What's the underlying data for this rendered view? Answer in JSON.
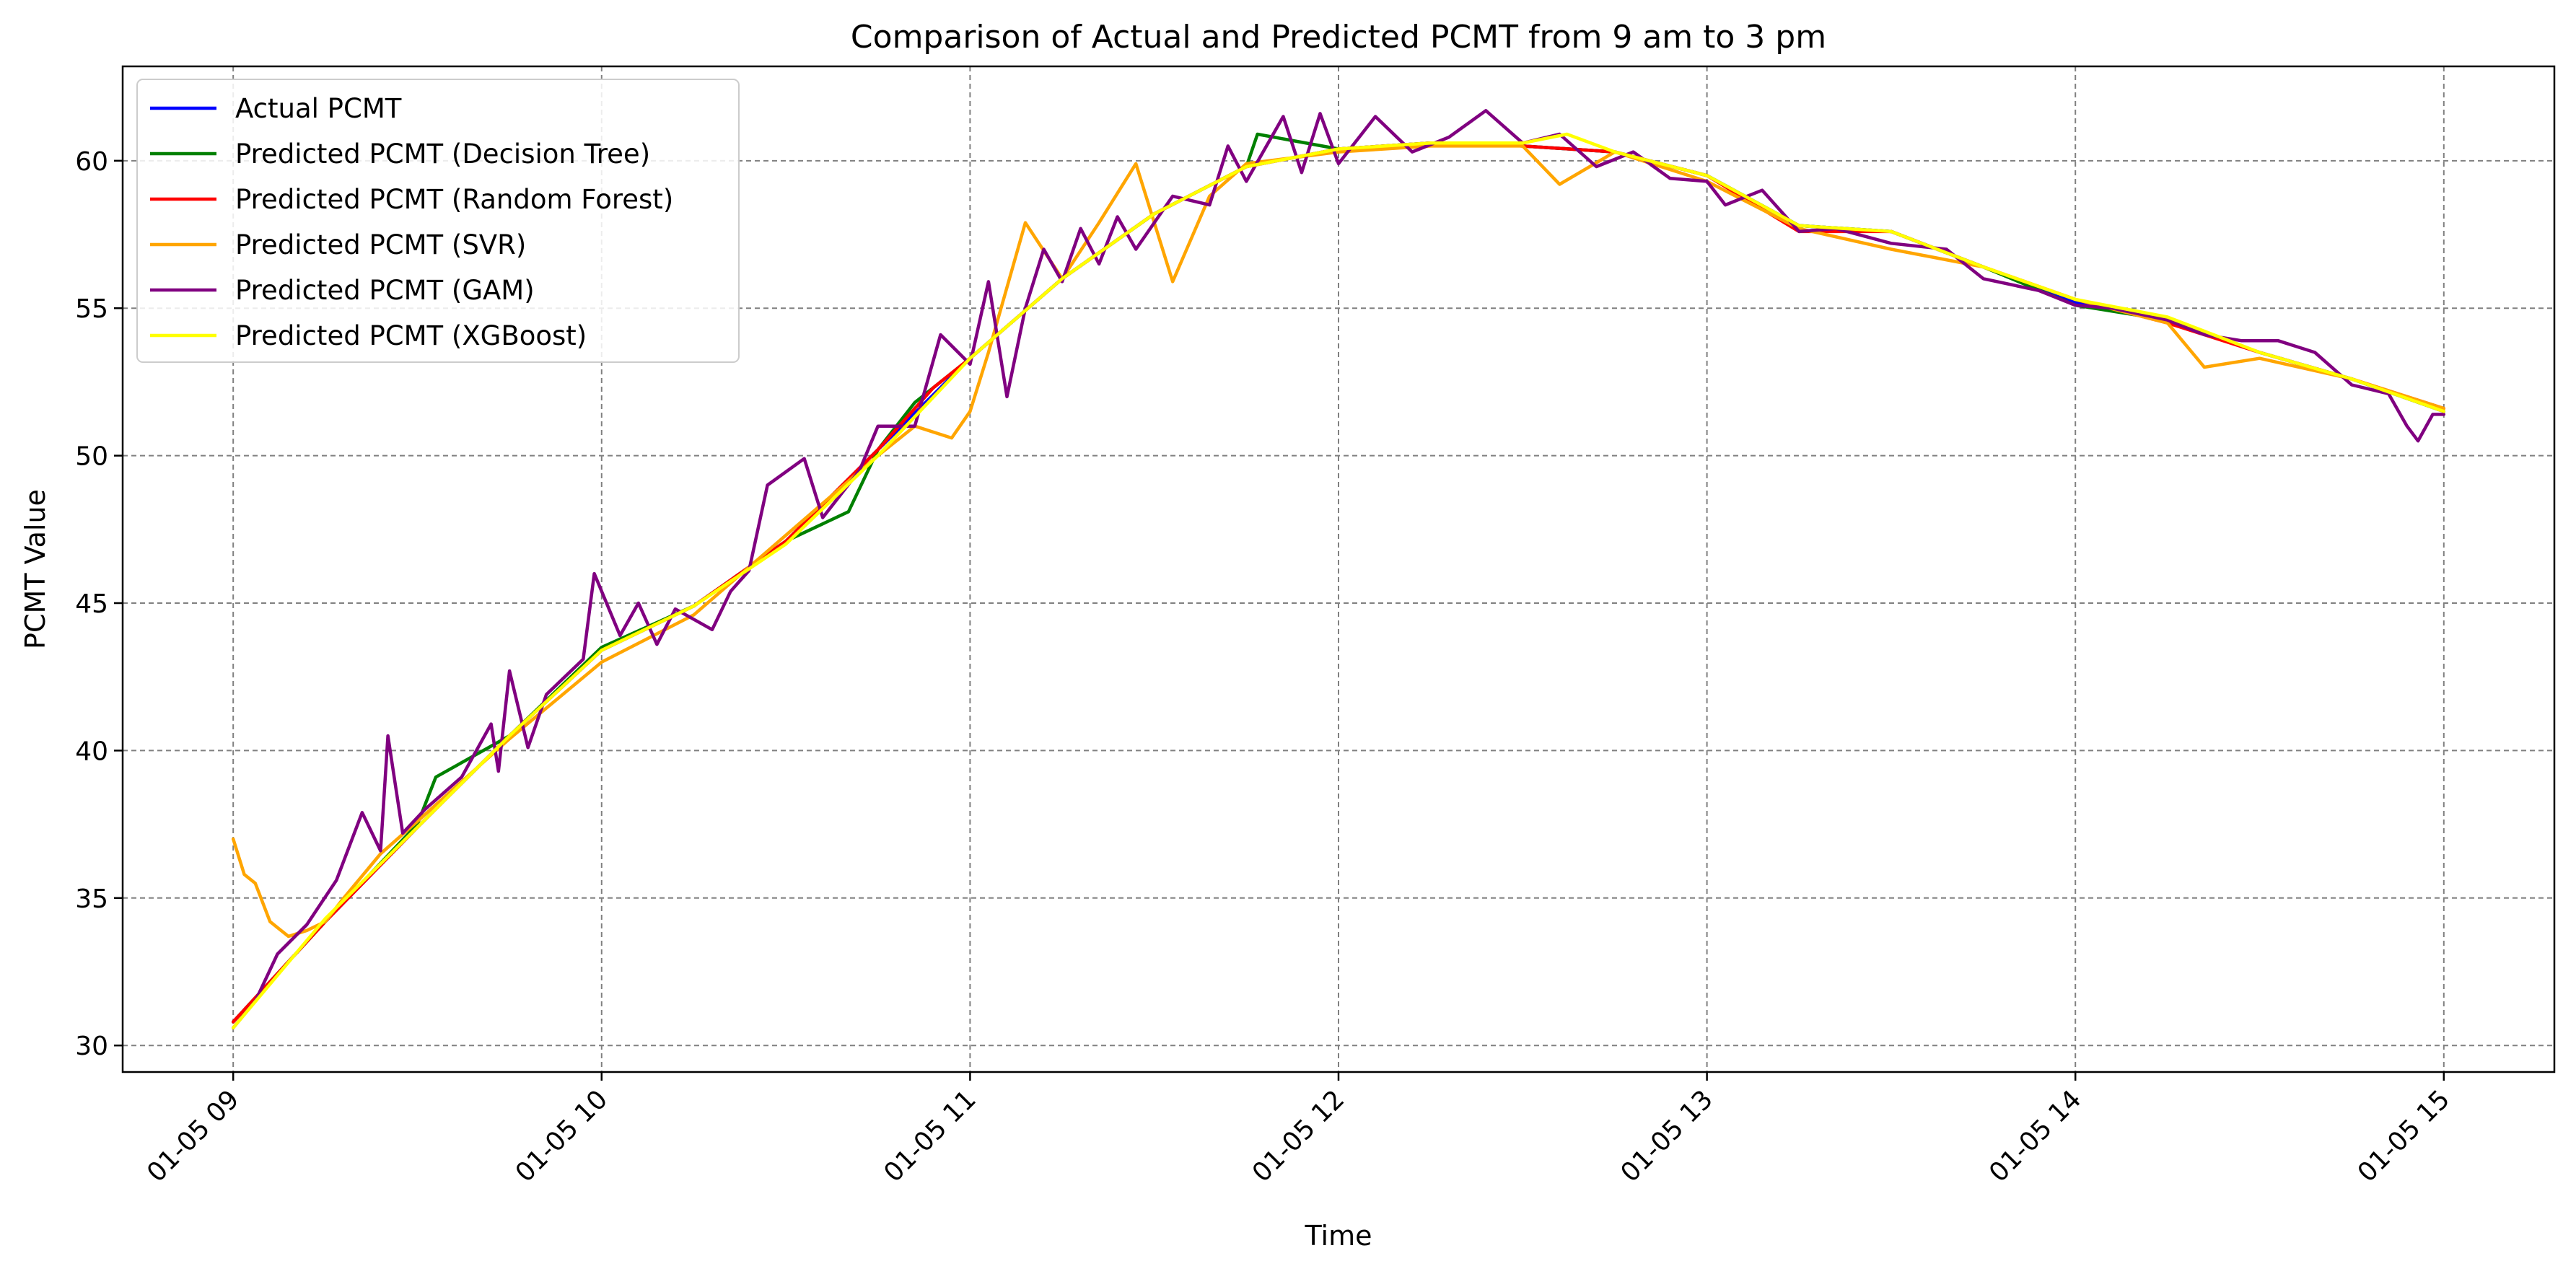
{
  "chart_data": {
    "type": "line",
    "title": "Comparison of Actual and Predicted PCMT from 9 am to 3 pm",
    "xlabel": "Time",
    "ylabel": "PCMT Value",
    "x_tick_labels": [
      "01-05 09",
      "01-05 10",
      "01-05 11",
      "01-05 12",
      "01-05 13",
      "01-05 14",
      "01-05 15"
    ],
    "x_ticks_hours": [
      9,
      10,
      11,
      12,
      13,
      14,
      15
    ],
    "xlim_hours": [
      8.7,
      15.3
    ],
    "ylim": [
      29.1,
      63.2
    ],
    "y_ticks": [
      30,
      35,
      40,
      45,
      50,
      55,
      60
    ],
    "grid": true,
    "legend_position": "top-left",
    "series": [
      {
        "name": "Actual PCMT",
        "color": "#0000ff",
        "points": [
          [
            9.0,
            30.8
          ],
          [
            9.25,
            34.2
          ],
          [
            9.5,
            37.4
          ],
          [
            9.75,
            40.5
          ],
          [
            10.0,
            43.4
          ],
          [
            10.25,
            44.9
          ],
          [
            10.5,
            47.1
          ],
          [
            10.75,
            50.2
          ],
          [
            11.0,
            53.3
          ],
          [
            11.25,
            56.0
          ],
          [
            11.5,
            58.2
          ],
          [
            11.75,
            59.8
          ],
          [
            12.0,
            60.4
          ],
          [
            12.25,
            60.6
          ],
          [
            12.5,
            60.5
          ],
          [
            12.75,
            60.3
          ],
          [
            13.0,
            59.5
          ],
          [
            13.25,
            57.8
          ],
          [
            13.5,
            57.6
          ],
          [
            13.75,
            56.4
          ],
          [
            14.0,
            55.2
          ],
          [
            14.25,
            54.6
          ],
          [
            14.5,
            53.5
          ],
          [
            14.75,
            52.6
          ],
          [
            15.0,
            51.5
          ]
        ]
      },
      {
        "name": "Predicted PCMT (Decision Tree)",
        "color": "#008000",
        "points": [
          [
            9.0,
            30.8
          ],
          [
            9.25,
            34.2
          ],
          [
            9.5,
            37.5
          ],
          [
            9.55,
            39.1
          ],
          [
            9.75,
            40.5
          ],
          [
            10.0,
            43.5
          ],
          [
            10.25,
            44.9
          ],
          [
            10.5,
            47.1
          ],
          [
            10.67,
            48.1
          ],
          [
            10.75,
            50.2
          ],
          [
            10.85,
            51.8
          ],
          [
            11.0,
            53.3
          ],
          [
            11.25,
            56.0
          ],
          [
            11.5,
            58.2
          ],
          [
            11.75,
            59.8
          ],
          [
            11.78,
            60.9
          ],
          [
            12.0,
            60.4
          ],
          [
            12.25,
            60.6
          ],
          [
            12.5,
            60.5
          ],
          [
            12.75,
            60.3
          ],
          [
            13.0,
            59.5
          ],
          [
            13.25,
            57.8
          ],
          [
            13.5,
            57.6
          ],
          [
            13.75,
            56.4
          ],
          [
            14.0,
            55.1
          ],
          [
            14.25,
            54.6
          ],
          [
            14.5,
            53.5
          ],
          [
            14.75,
            52.6
          ],
          [
            15.0,
            51.5
          ]
        ]
      },
      {
        "name": "Predicted PCMT (Random Forest)",
        "color": "#ff0000",
        "points": [
          [
            9.0,
            30.8
          ],
          [
            9.25,
            34.2
          ],
          [
            9.5,
            37.4
          ],
          [
            9.75,
            40.5
          ],
          [
            10.0,
            43.4
          ],
          [
            10.25,
            44.9
          ],
          [
            10.5,
            47.1
          ],
          [
            10.75,
            50.2
          ],
          [
            10.9,
            52.3
          ],
          [
            11.0,
            53.3
          ],
          [
            11.25,
            56.0
          ],
          [
            11.5,
            58.2
          ],
          [
            11.75,
            59.8
          ],
          [
            12.0,
            60.4
          ],
          [
            12.25,
            60.6
          ],
          [
            12.5,
            60.5
          ],
          [
            12.75,
            60.3
          ],
          [
            13.0,
            59.5
          ],
          [
            13.25,
            57.6
          ],
          [
            13.5,
            57.6
          ],
          [
            13.75,
            56.4
          ],
          [
            14.0,
            55.3
          ],
          [
            14.25,
            54.5
          ],
          [
            14.5,
            53.5
          ],
          [
            14.75,
            52.6
          ],
          [
            15.0,
            51.6
          ]
        ]
      },
      {
        "name": "Predicted PCMT (SVR)",
        "color": "#ffa500",
        "points": [
          [
            9.0,
            37.0
          ],
          [
            9.03,
            35.8
          ],
          [
            9.06,
            35.5
          ],
          [
            9.1,
            34.2
          ],
          [
            9.15,
            33.7
          ],
          [
            9.2,
            33.9
          ],
          [
            9.25,
            34.2
          ],
          [
            9.3,
            35.0
          ],
          [
            9.4,
            36.5
          ],
          [
            9.5,
            37.6
          ],
          [
            9.75,
            40.4
          ],
          [
            10.0,
            43.0
          ],
          [
            10.25,
            44.6
          ],
          [
            10.5,
            47.3
          ],
          [
            10.75,
            50.0
          ],
          [
            10.85,
            51.0
          ],
          [
            10.95,
            50.6
          ],
          [
            11.0,
            51.5
          ],
          [
            11.05,
            53.5
          ],
          [
            11.15,
            57.9
          ],
          [
            11.25,
            56.0
          ],
          [
            11.35,
            57.9
          ],
          [
            11.45,
            59.9
          ],
          [
            11.55,
            55.9
          ],
          [
            11.65,
            58.8
          ],
          [
            11.75,
            59.9
          ],
          [
            12.0,
            60.3
          ],
          [
            12.25,
            60.5
          ],
          [
            12.5,
            60.5
          ],
          [
            12.6,
            59.2
          ],
          [
            12.75,
            60.3
          ],
          [
            13.0,
            59.3
          ],
          [
            13.25,
            57.7
          ],
          [
            13.5,
            57.0
          ],
          [
            13.75,
            56.4
          ],
          [
            14.0,
            55.3
          ],
          [
            14.25,
            54.5
          ],
          [
            14.35,
            53.0
          ],
          [
            14.5,
            53.3
          ],
          [
            14.75,
            52.6
          ],
          [
            15.0,
            51.6
          ]
        ]
      },
      {
        "name": "Predicted PCMT (GAM)",
        "color": "#800080",
        "points": [
          [
            9.0,
            30.6
          ],
          [
            9.06,
            31.5
          ],
          [
            9.12,
            33.1
          ],
          [
            9.2,
            34.1
          ],
          [
            9.28,
            35.6
          ],
          [
            9.35,
            37.9
          ],
          [
            9.4,
            36.6
          ],
          [
            9.42,
            40.5
          ],
          [
            9.46,
            37.2
          ],
          [
            9.52,
            38.0
          ],
          [
            9.62,
            39.1
          ],
          [
            9.7,
            40.9
          ],
          [
            9.72,
            39.3
          ],
          [
            9.75,
            42.7
          ],
          [
            9.8,
            40.1
          ],
          [
            9.85,
            41.9
          ],
          [
            9.9,
            42.5
          ],
          [
            9.95,
            43.1
          ],
          [
            9.98,
            46.0
          ],
          [
            10.05,
            43.9
          ],
          [
            10.1,
            45.0
          ],
          [
            10.15,
            43.6
          ],
          [
            10.2,
            44.8
          ],
          [
            10.3,
            44.1
          ],
          [
            10.35,
            45.4
          ],
          [
            10.4,
            46.1
          ],
          [
            10.45,
            49.0
          ],
          [
            10.55,
            49.9
          ],
          [
            10.6,
            47.9
          ],
          [
            10.7,
            49.5
          ],
          [
            10.75,
            51.0
          ],
          [
            10.85,
            51.0
          ],
          [
            10.92,
            54.1
          ],
          [
            11.0,
            53.1
          ],
          [
            11.05,
            55.9
          ],
          [
            11.1,
            52.0
          ],
          [
            11.15,
            55.0
          ],
          [
            11.2,
            57.0
          ],
          [
            11.25,
            55.9
          ],
          [
            11.3,
            57.7
          ],
          [
            11.35,
            56.5
          ],
          [
            11.4,
            58.1
          ],
          [
            11.45,
            57.0
          ],
          [
            11.55,
            58.8
          ],
          [
            11.65,
            58.5
          ],
          [
            11.7,
            60.5
          ],
          [
            11.75,
            59.3
          ],
          [
            11.85,
            61.5
          ],
          [
            11.9,
            59.6
          ],
          [
            11.95,
            61.6
          ],
          [
            12.0,
            59.9
          ],
          [
            12.1,
            61.5
          ],
          [
            12.2,
            60.3
          ],
          [
            12.3,
            60.8
          ],
          [
            12.4,
            61.7
          ],
          [
            12.5,
            60.6
          ],
          [
            12.6,
            60.9
          ],
          [
            12.7,
            59.8
          ],
          [
            12.8,
            60.3
          ],
          [
            12.9,
            59.4
          ],
          [
            13.0,
            59.3
          ],
          [
            13.05,
            58.5
          ],
          [
            13.15,
            59.0
          ],
          [
            13.25,
            57.6
          ],
          [
            13.35,
            57.7
          ],
          [
            13.5,
            57.2
          ],
          [
            13.65,
            57.0
          ],
          [
            13.75,
            56.0
          ],
          [
            13.9,
            55.6
          ],
          [
            14.0,
            55.1
          ],
          [
            14.1,
            55.0
          ],
          [
            14.25,
            54.6
          ],
          [
            14.35,
            54.1
          ],
          [
            14.45,
            53.9
          ],
          [
            14.55,
            53.9
          ],
          [
            14.65,
            53.5
          ],
          [
            14.75,
            52.4
          ],
          [
            14.85,
            52.1
          ],
          [
            14.9,
            51.0
          ],
          [
            14.93,
            50.5
          ],
          [
            14.97,
            51.4
          ],
          [
            15.0,
            51.4
          ]
        ]
      },
      {
        "name": "Predicted PCMT (XGBoost)",
        "color": "#ffff00",
        "points": [
          [
            9.0,
            30.6
          ],
          [
            9.25,
            34.3
          ],
          [
            9.5,
            37.4
          ],
          [
            9.75,
            40.5
          ],
          [
            10.0,
            43.4
          ],
          [
            10.25,
            44.9
          ],
          [
            10.5,
            47.0
          ],
          [
            10.75,
            50.0
          ],
          [
            11.0,
            53.3
          ],
          [
            11.25,
            56.0
          ],
          [
            11.5,
            58.2
          ],
          [
            11.75,
            59.8
          ],
          [
            12.0,
            60.4
          ],
          [
            12.25,
            60.6
          ],
          [
            12.5,
            60.6
          ],
          [
            12.62,
            60.9
          ],
          [
            12.75,
            60.3
          ],
          [
            13.0,
            59.5
          ],
          [
            13.25,
            57.8
          ],
          [
            13.5,
            57.6
          ],
          [
            13.75,
            56.4
          ],
          [
            14.0,
            55.3
          ],
          [
            14.25,
            54.7
          ],
          [
            14.5,
            53.5
          ],
          [
            14.75,
            52.6
          ],
          [
            15.0,
            51.5
          ]
        ]
      }
    ]
  }
}
